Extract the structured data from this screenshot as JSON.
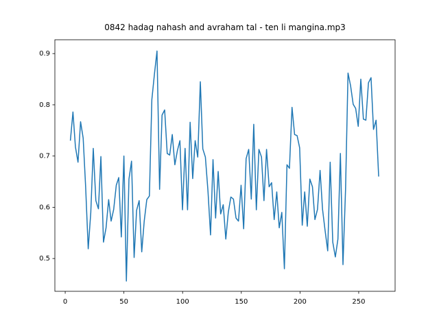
{
  "chart_data": {
    "type": "line",
    "title": "0842 hadag nahash and avraham tal - ten li mangina.mp3",
    "x": [
      4.4,
      6.6,
      8.7,
      10.9,
      13.1,
      15.3,
      17.4,
      19.6,
      21.8,
      23.9,
      26.1,
      28.3,
      30.4,
      32.6,
      34.8,
      37.0,
      39.1,
      41.3,
      43.5,
      45.6,
      47.8,
      50.0,
      52.1,
      54.3,
      56.5,
      58.7,
      60.8,
      63.0,
      65.2,
      67.3,
      69.5,
      71.7,
      73.8,
      76.0,
      78.2,
      80.4,
      82.5,
      84.7,
      86.9,
      89.0,
      91.2,
      93.4,
      95.5,
      97.7,
      99.9,
      102.1,
      104.2,
      106.4,
      108.6,
      110.7,
      112.9,
      115.1,
      117.2,
      119.4,
      121.6,
      123.8,
      125.9,
      128.1,
      130.3,
      132.4,
      134.6,
      136.8,
      138.9,
      141.1,
      143.3,
      145.5,
      147.6,
      149.8,
      152.0,
      154.1,
      156.3,
      158.5,
      160.6,
      162.8,
      165.0,
      167.2,
      169.3,
      171.5,
      173.7,
      175.8,
      178.0,
      180.2,
      182.3,
      184.5,
      186.7,
      188.9,
      191.0,
      193.2,
      195.4,
      197.5,
      199.7,
      201.9,
      204.0,
      206.2,
      208.4,
      210.6,
      212.7,
      214.9,
      217.1,
      219.2,
      221.4,
      223.6,
      225.7,
      227.9,
      230.1,
      232.3,
      234.4,
      236.6,
      238.8,
      240.9,
      243.1,
      245.3,
      247.4,
      249.6,
      251.8,
      254.0,
      256.1,
      258.3,
      260.5,
      262.6,
      264.8,
      267.0
    ],
    "values": [
      0.73,
      0.786,
      0.718,
      0.688,
      0.767,
      0.735,
      0.64,
      0.519,
      0.59,
      0.715,
      0.613,
      0.597,
      0.699,
      0.532,
      0.56,
      0.615,
      0.573,
      0.596,
      0.643,
      0.658,
      0.542,
      0.7,
      0.456,
      0.655,
      0.69,
      0.502,
      0.594,
      0.613,
      0.513,
      0.573,
      0.615,
      0.622,
      0.81,
      0.86,
      0.905,
      0.635,
      0.78,
      0.79,
      0.705,
      0.702,
      0.742,
      0.683,
      0.71,
      0.73,
      0.595,
      0.715,
      0.595,
      0.766,
      0.656,
      0.73,
      0.698,
      0.845,
      0.714,
      0.698,
      0.632,
      0.546,
      0.693,
      0.579,
      0.67,
      0.587,
      0.605,
      0.538,
      0.59,
      0.62,
      0.616,
      0.579,
      0.573,
      0.643,
      0.558,
      0.695,
      0.713,
      0.616,
      0.762,
      0.595,
      0.713,
      0.698,
      0.613,
      0.713,
      0.64,
      0.648,
      0.576,
      0.63,
      0.56,
      0.59,
      0.48,
      0.683,
      0.676,
      0.795,
      0.742,
      0.74,
      0.716,
      0.565,
      0.63,
      0.563,
      0.655,
      0.64,
      0.576,
      0.596,
      0.672,
      0.596,
      0.554,
      0.515,
      0.688,
      0.532,
      0.503,
      0.538,
      0.705,
      0.488,
      0.635,
      0.862,
      0.837,
      0.801,
      0.793,
      0.758,
      0.85,
      0.772,
      0.77,
      0.843,
      0.853,
      0.752,
      0.77,
      0.66
    ],
    "color": "#1f77b4",
    "xlim": [
      -8.8,
      281
    ],
    "xticks": [
      0,
      50,
      100,
      150,
      200,
      250
    ],
    "ylim": [
      0.436,
      0.927
    ],
    "yticks": [
      0.5,
      0.6,
      0.7,
      0.8,
      0.9
    ]
  }
}
